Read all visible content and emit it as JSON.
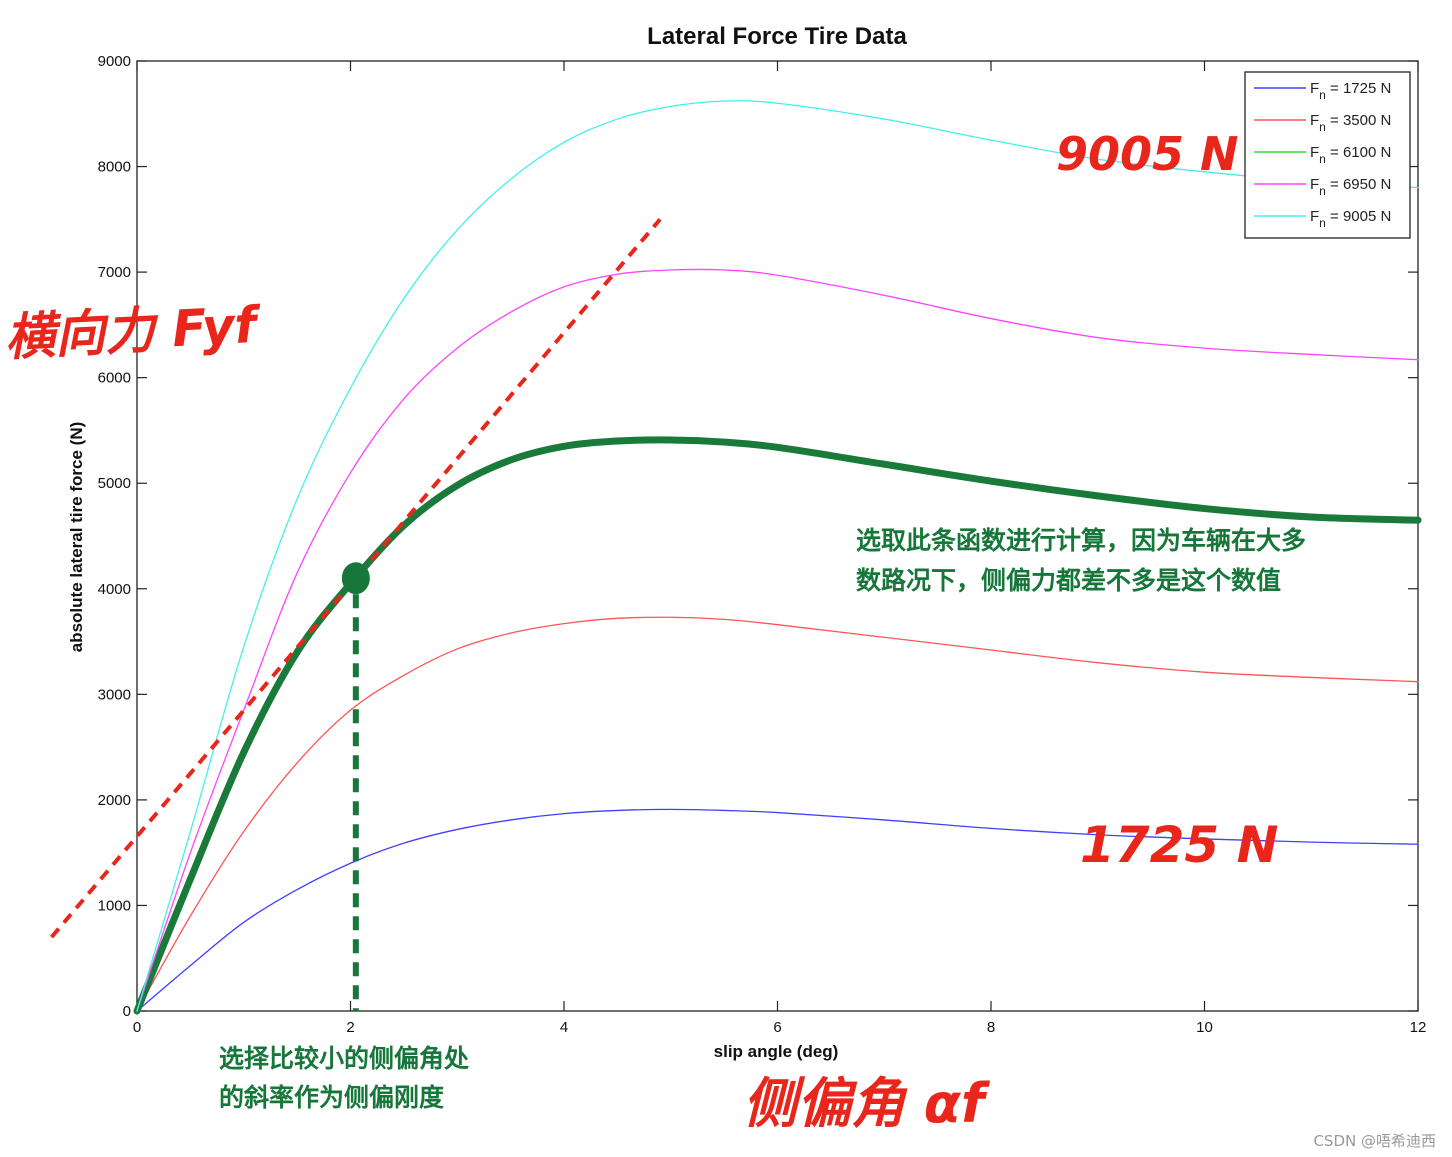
{
  "chart_data": {
    "type": "line",
    "title": "Lateral Force Tire Data",
    "xlabel": "slip angle (deg)",
    "ylabel": "absolute lateral tire force (N)",
    "xlim": [
      0,
      12
    ],
    "ylim": [
      0,
      9000
    ],
    "x_ticks": [
      0,
      2,
      4,
      6,
      8,
      10,
      12
    ],
    "y_ticks": [
      0,
      1000,
      2000,
      3000,
      4000,
      5000,
      6000,
      7000,
      8000,
      9000
    ],
    "legend_position": "top-right",
    "grid": false,
    "series": [
      {
        "name": "F_n = 1725 N",
        "legend_main": "F",
        "legend_sub": "n",
        "legend_rest": " = 1725 N",
        "color": "#4040ff",
        "x": [
          0,
          0.5,
          1,
          1.5,
          2,
          2.5,
          3,
          3.5,
          4,
          4.5,
          5,
          5.5,
          6,
          7,
          8,
          9,
          10,
          11,
          12
        ],
        "y": [
          0,
          430,
          840,
          1150,
          1400,
          1590,
          1720,
          1810,
          1870,
          1900,
          1910,
          1900,
          1880,
          1810,
          1730,
          1670,
          1630,
          1600,
          1580
        ]
      },
      {
        "name": "F_n = 3500 N",
        "legend_main": "F",
        "legend_sub": "n",
        "legend_rest": " = 3500 N",
        "color": "#ff5555",
        "x": [
          0,
          0.5,
          1,
          1.5,
          2,
          2.5,
          3,
          3.5,
          4,
          4.5,
          5,
          5.5,
          6,
          7,
          8,
          9,
          10,
          11,
          12
        ],
        "y": [
          0,
          900,
          1700,
          2350,
          2850,
          3180,
          3430,
          3580,
          3670,
          3720,
          3730,
          3710,
          3660,
          3540,
          3420,
          3300,
          3210,
          3160,
          3120
        ]
      },
      {
        "name": "F_n = 6100 N",
        "legend_main": "F",
        "legend_sub": "n",
        "legend_rest": " = 6100 N",
        "color": "#1a7a3a",
        "legend_color": "#33dd33",
        "x": [
          0,
          0.5,
          1,
          1.5,
          2,
          2.5,
          3,
          3.5,
          4,
          4.5,
          5,
          5.5,
          6,
          7,
          8,
          9,
          10,
          11,
          12
        ],
        "y": [
          0,
          1250,
          2450,
          3400,
          4050,
          4600,
          4980,
          5220,
          5350,
          5400,
          5410,
          5390,
          5340,
          5180,
          5020,
          4880,
          4760,
          4680,
          4650
        ]
      },
      {
        "name": "F_n = 6950 N",
        "legend_main": "F",
        "legend_sub": "n",
        "legend_rest": " = 6950 N",
        "color": "#ff44ff",
        "x": [
          0,
          0.5,
          1,
          1.5,
          2,
          2.5,
          3,
          3.5,
          4,
          4.5,
          5,
          5.5,
          6,
          7,
          8,
          9,
          10,
          11,
          12
        ],
        "y": [
          0,
          1500,
          2850,
          4150,
          5100,
          5800,
          6280,
          6620,
          6860,
          6980,
          7020,
          7020,
          6970,
          6780,
          6560,
          6380,
          6280,
          6220,
          6170
        ]
      },
      {
        "name": "F_n = 9005 N",
        "legend_main": "F",
        "legend_sub": "n",
        "legend_rest": " = 9005 N",
        "color": "#44eeee",
        "x": [
          0,
          0.5,
          1,
          1.5,
          2,
          2.5,
          3,
          3.5,
          4,
          4.5,
          5,
          5.5,
          6,
          7,
          8,
          9,
          10,
          11,
          12
        ],
        "y": [
          0,
          1700,
          3450,
          4850,
          5900,
          6750,
          7400,
          7880,
          8230,
          8450,
          8570,
          8620,
          8600,
          8450,
          8250,
          8070,
          7950,
          7860,
          7800
        ]
      }
    ],
    "annotations": {
      "tangent_line": {
        "color": "#e8261c",
        "points": [
          [
            -0.8,
            700
          ],
          [
            4.9,
            7500
          ]
        ]
      },
      "point_marker": {
        "x": 2.05,
        "y": 4100,
        "color": "#17773a"
      },
      "drop_line": {
        "x": 2.05,
        "y_from": 4100,
        "y_to": 0,
        "color": "#17773a"
      }
    }
  },
  "handwritten": {
    "lateral_force": "横向力 Fyf",
    "label_9005": "9005 N",
    "label_1725": "1725 N",
    "slip_angle": "侧偏角 αf"
  },
  "notes": {
    "right_line1": "选取此条函数进行计算，因为车辆在大多",
    "right_line2": "数路况下，侧偏力都差不多是这个数值",
    "bottom_line1": "选择比较小的侧偏角处",
    "bottom_line2": "的斜率作为侧偏刚度"
  },
  "watermark": "CSDN @唔希迪西"
}
